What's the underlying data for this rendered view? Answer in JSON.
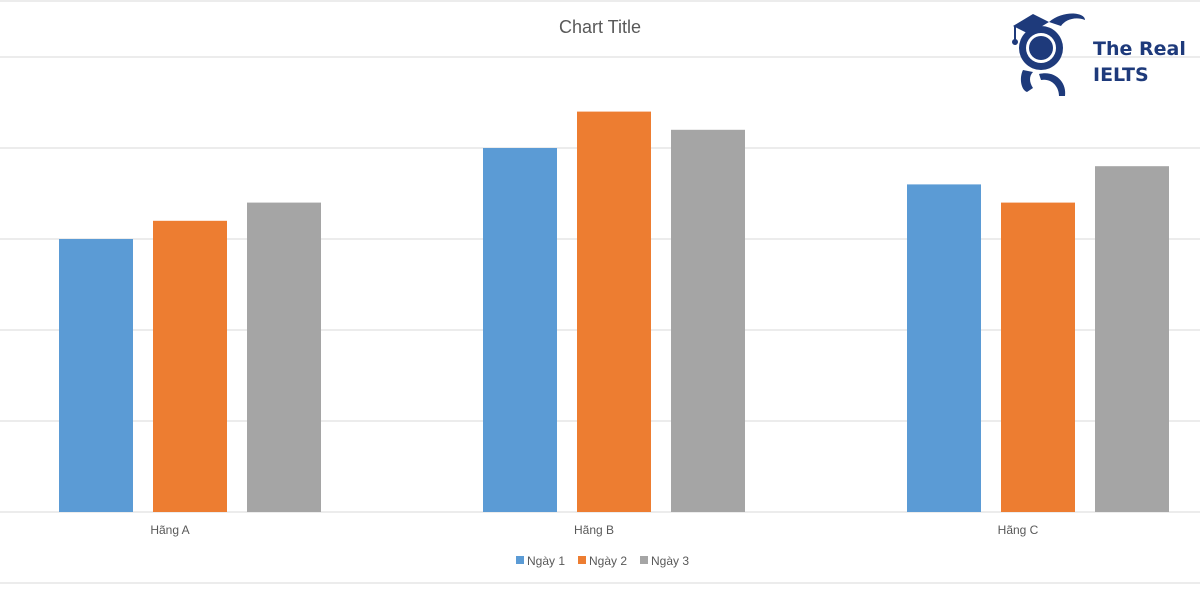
{
  "chart_data": {
    "type": "bar",
    "title": "Chart Title",
    "categories": [
      "Hãng A",
      "Hãng B",
      "Hãng C"
    ],
    "series": [
      {
        "name": "Ngày 1",
        "color": "#5b9bd5",
        "values": [
          3.0,
          4.0,
          3.6
        ]
      },
      {
        "name": "Ngày 2",
        "color": "#ed7d31",
        "values": [
          3.2,
          4.4,
          3.4
        ]
      },
      {
        "name": "Ngày 3",
        "color": "#a5a5a5",
        "values": [
          3.4,
          4.2,
          3.8
        ]
      }
    ],
    "xlabel": "",
    "ylabel": "",
    "ylim": [
      0,
      5
    ],
    "grid": true,
    "legend": "bottom"
  },
  "logo": {
    "text_line1": "The Real",
    "text_line2": "IELTS",
    "color": "#1e3a7b"
  }
}
